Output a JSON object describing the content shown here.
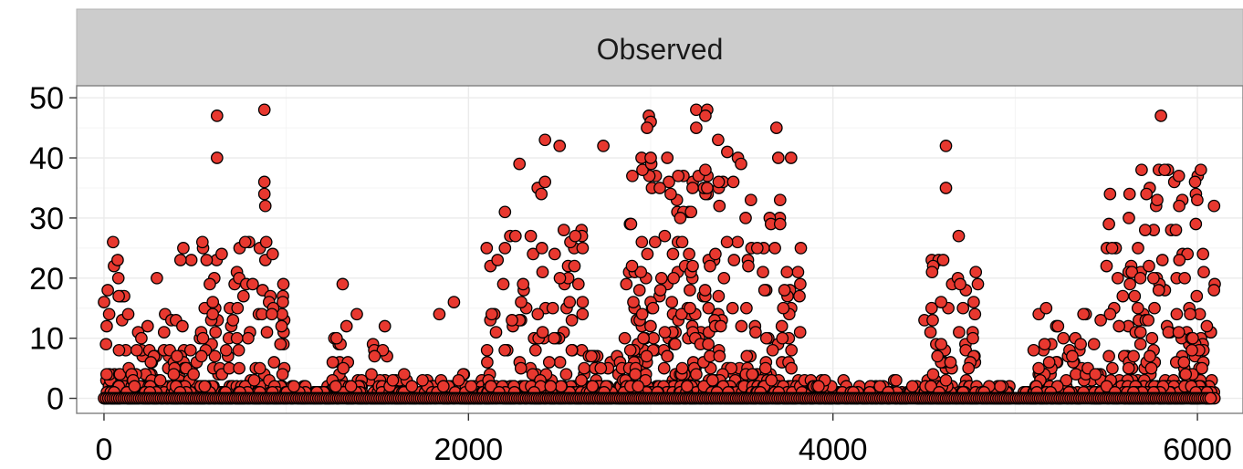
{
  "chart_data": {
    "type": "scatter",
    "facet_label": "Observed",
    "xlim": [
      -150,
      6250
    ],
    "ylim": [
      -2.5,
      52
    ],
    "x_ticks": [
      0,
      2000,
      4000,
      6000
    ],
    "x_tick_labels": [
      "0",
      "2000",
      "4000",
      "6000"
    ],
    "y_ticks": [
      0,
      10,
      20,
      30,
      40,
      50
    ],
    "y_tick_labels": [
      "0",
      "10",
      "20",
      "30",
      "40",
      "50"
    ],
    "grid": true,
    "legend": "none",
    "point_fill": "#e8382f",
    "point_outline": "#000000",
    "strip_fill": "#cccccc",
    "clusters": [
      {
        "x0": 0,
        "x1": 120,
        "max": 26,
        "density": 60
      },
      {
        "x0": 120,
        "x1": 420,
        "max": 14,
        "density": 110
      },
      {
        "x0": 380,
        "x1": 720,
        "max": 26,
        "density": 140
      },
      {
        "x0": 720,
        "x1": 1000,
        "max": 26,
        "density": 120
      },
      {
        "x0": 1000,
        "x1": 1250,
        "max": 2,
        "density": 50
      },
      {
        "x0": 1250,
        "x1": 1560,
        "max": 16,
        "density": 100
      },
      {
        "x0": 1560,
        "x1": 2100,
        "max": 4,
        "density": 120
      },
      {
        "x0": 2100,
        "x1": 2650,
        "max": 30,
        "density": 220
      },
      {
        "x0": 2650,
        "x1": 2850,
        "max": 8,
        "density": 70
      },
      {
        "x0": 2850,
        "x1": 3150,
        "max": 40,
        "density": 220
      },
      {
        "x0": 3150,
        "x1": 3550,
        "max": 40,
        "density": 260
      },
      {
        "x0": 3550,
        "x1": 3850,
        "max": 30,
        "density": 150
      },
      {
        "x0": 3850,
        "x1": 4500,
        "max": 3,
        "density": 110
      },
      {
        "x0": 4500,
        "x1": 4800,
        "max": 24,
        "density": 120
      },
      {
        "x0": 4800,
        "x1": 5100,
        "max": 1,
        "density": 60
      },
      {
        "x0": 5100,
        "x1": 5500,
        "max": 15,
        "density": 120
      },
      {
        "x0": 5500,
        "x1": 6100,
        "max": 39,
        "density": 300
      }
    ],
    "outliers": [
      {
        "x": 0,
        "y": 16
      },
      {
        "x": 50,
        "y": 26
      },
      {
        "x": 55,
        "y": 22
      },
      {
        "x": 75,
        "y": 23
      },
      {
        "x": 290,
        "y": 20
      },
      {
        "x": 420,
        "y": 23
      },
      {
        "x": 540,
        "y": 26
      },
      {
        "x": 620,
        "y": 47
      },
      {
        "x": 620,
        "y": 40
      },
      {
        "x": 880,
        "y": 48
      },
      {
        "x": 880,
        "y": 36
      },
      {
        "x": 880,
        "y": 34
      },
      {
        "x": 885,
        "y": 32
      },
      {
        "x": 890,
        "y": 26
      },
      {
        "x": 1310,
        "y": 19
      },
      {
        "x": 1840,
        "y": 14
      },
      {
        "x": 1920,
        "y": 16
      },
      {
        "x": 2100,
        "y": 25
      },
      {
        "x": 2200,
        "y": 25
      },
      {
        "x": 2200,
        "y": 31
      },
      {
        "x": 2280,
        "y": 39
      },
      {
        "x": 2380,
        "y": 35
      },
      {
        "x": 2400,
        "y": 34
      },
      {
        "x": 2420,
        "y": 36
      },
      {
        "x": 2420,
        "y": 43
      },
      {
        "x": 2500,
        "y": 42
      },
      {
        "x": 2740,
        "y": 42
      },
      {
        "x": 2990,
        "y": 47
      },
      {
        "x": 3000,
        "y": 46
      },
      {
        "x": 2980,
        "y": 45
      },
      {
        "x": 2950,
        "y": 40
      },
      {
        "x": 3000,
        "y": 40
      },
      {
        "x": 3050,
        "y": 35
      },
      {
        "x": 3250,
        "y": 48
      },
      {
        "x": 3310,
        "y": 48
      },
      {
        "x": 3300,
        "y": 47
      },
      {
        "x": 3250,
        "y": 45
      },
      {
        "x": 3370,
        "y": 43
      },
      {
        "x": 3420,
        "y": 41
      },
      {
        "x": 3300,
        "y": 38
      },
      {
        "x": 3230,
        "y": 35
      },
      {
        "x": 3310,
        "y": 35
      },
      {
        "x": 3690,
        "y": 45
      },
      {
        "x": 3700,
        "y": 40
      },
      {
        "x": 3770,
        "y": 40
      },
      {
        "x": 3710,
        "y": 33
      },
      {
        "x": 3660,
        "y": 29
      },
      {
        "x": 3710,
        "y": 29
      },
      {
        "x": 4620,
        "y": 42
      },
      {
        "x": 4620,
        "y": 35
      },
      {
        "x": 4690,
        "y": 27
      },
      {
        "x": 5170,
        "y": 15
      },
      {
        "x": 5800,
        "y": 47
      },
      {
        "x": 5820,
        "y": 38
      },
      {
        "x": 5720,
        "y": 34
      },
      {
        "x": 5900,
        "y": 32
      },
      {
        "x": 5930,
        "y": 20
      },
      {
        "x": 5960,
        "y": 14
      }
    ]
  }
}
